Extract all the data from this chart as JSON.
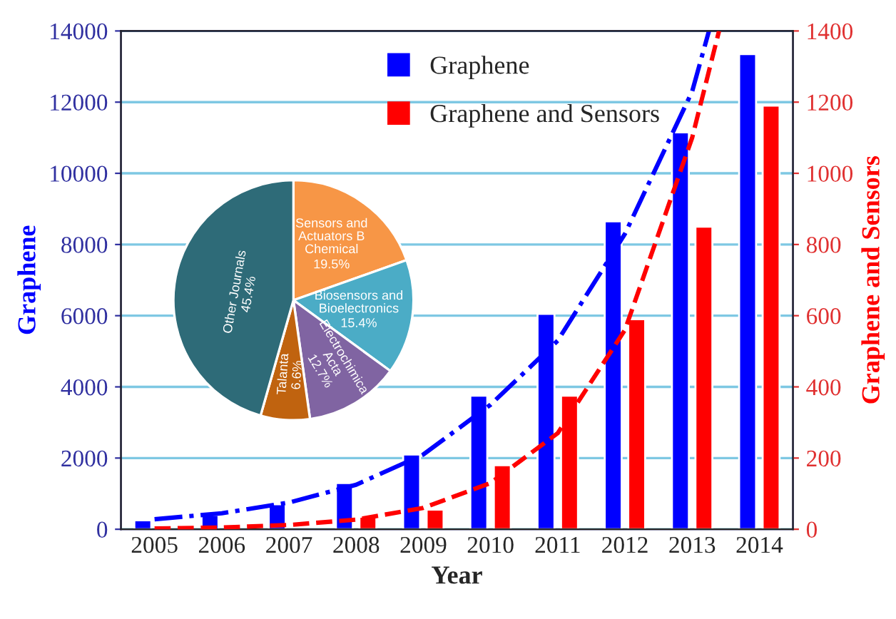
{
  "chart_data": [
    {
      "type": "bar",
      "xlabel": "Year",
      "ylabel": "Graphene",
      "y2label": "Graphene and Sensors",
      "x": [
        2005,
        2006,
        2007,
        2008,
        2009,
        2010,
        2011,
        2012,
        2013,
        2014
      ],
      "xlim": [
        2004.5,
        2014.5
      ],
      "xticks": [
        2005,
        2006,
        2007,
        2008,
        2009,
        2010,
        2011,
        2012,
        2013,
        2014
      ],
      "ylim": [
        0,
        14000
      ],
      "yticks": [
        0,
        2000,
        4000,
        6000,
        8000,
        10000,
        12000,
        14000
      ],
      "y2lim": [
        0,
        1400
      ],
      "y2ticks": [
        0,
        200,
        400,
        600,
        800,
        1000,
        1200,
        1400
      ],
      "grid": "y",
      "legend": "top",
      "series": [
        {
          "name": "Graphene",
          "color": "#0000ff",
          "values": [
            250,
            400,
            700,
            1300,
            2100,
            3750,
            6050,
            8650,
            11150,
            13350
          ]
        },
        {
          "name": "Graphene and Sensors",
          "color": "#ff0000",
          "axis": "y2",
          "values": [
            null,
            null,
            null,
            35,
            55,
            180,
            375,
            590,
            850,
            1190
          ]
        },
        {
          "type": "line",
          "color": "#0000ff",
          "line_style": "dashdot",
          "x": [
            2005,
            2006,
            2007,
            2008,
            2009,
            2010,
            2011,
            2012,
            2013,
            2013.25
          ],
          "values": [
            280,
            450,
            750,
            1250,
            2100,
            3500,
            5300,
            8300,
            12300,
            14000
          ]
        },
        {
          "type": "line",
          "color": "#ff0000",
          "line_style": "dashed",
          "axis": "y2",
          "x": [
            2005,
            2006,
            2007,
            2008,
            2009,
            2010,
            2011,
            2012,
            2013,
            2013.4
          ],
          "values": [
            2,
            5,
            12,
            27,
            60,
            130,
            270,
            560,
            1100,
            1400
          ]
        }
      ]
    },
    {
      "type": "pie",
      "categories": [
        "Sensors and\nActuators B\nChemical",
        "Biosensors and\nBioelectronics",
        "Electrochimica\nActa",
        "Talanta",
        "Other Journals"
      ],
      "values": [
        19.5,
        15.4,
        12.7,
        6.6,
        45.4
      ],
      "value_labels": [
        "19.5%",
        "15.4%",
        "12.7%",
        "6.6%",
        "45.4%"
      ],
      "colors": [
        "#f79646",
        "#4bacc6",
        "#8064a2",
        "#c0630f",
        "#2e6b78"
      ]
    }
  ]
}
